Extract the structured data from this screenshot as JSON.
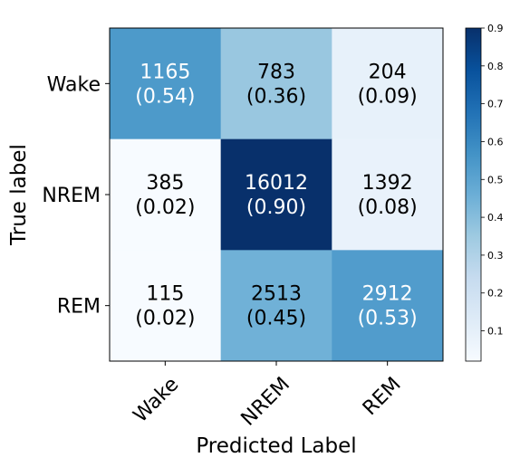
{
  "chart_data": {
    "type": "heatmap",
    "title": "",
    "xlabel": "Predicted Label",
    "ylabel": "True label",
    "x_categories": [
      "Wake",
      "NREM",
      "REM"
    ],
    "y_categories": [
      "Wake",
      "NREM",
      "REM"
    ],
    "counts": [
      [
        1165,
        783,
        204
      ],
      [
        385,
        16012,
        1392
      ],
      [
        115,
        2513,
        2912
      ]
    ],
    "fractions": [
      [
        0.54,
        0.36,
        0.09
      ],
      [
        0.02,
        0.9,
        0.08
      ],
      [
        0.02,
        0.45,
        0.53
      ]
    ],
    "cell_labels": [
      [
        [
          "1165",
          "(0.54)"
        ],
        [
          "783",
          "(0.36)"
        ],
        [
          "204",
          "(0.09)"
        ]
      ],
      [
        [
          "385",
          "(0.02)"
        ],
        [
          "16012",
          "(0.90)"
        ],
        [
          "1392",
          "(0.08)"
        ]
      ],
      [
        [
          "115",
          "(0.02)"
        ],
        [
          "2513",
          "(0.45)"
        ],
        [
          "2912",
          "(0.53)"
        ]
      ]
    ],
    "colorbar": {
      "range": [
        0.02,
        0.9
      ],
      "ticks": [
        "0.1",
        "0.2",
        "0.3",
        "0.4",
        "0.5",
        "0.6",
        "0.7",
        "0.8",
        "0.9"
      ],
      "colormap": "Blues"
    },
    "colors": {
      "low": "#f7fbff",
      "high": "#08306b"
    },
    "grid": false
  }
}
